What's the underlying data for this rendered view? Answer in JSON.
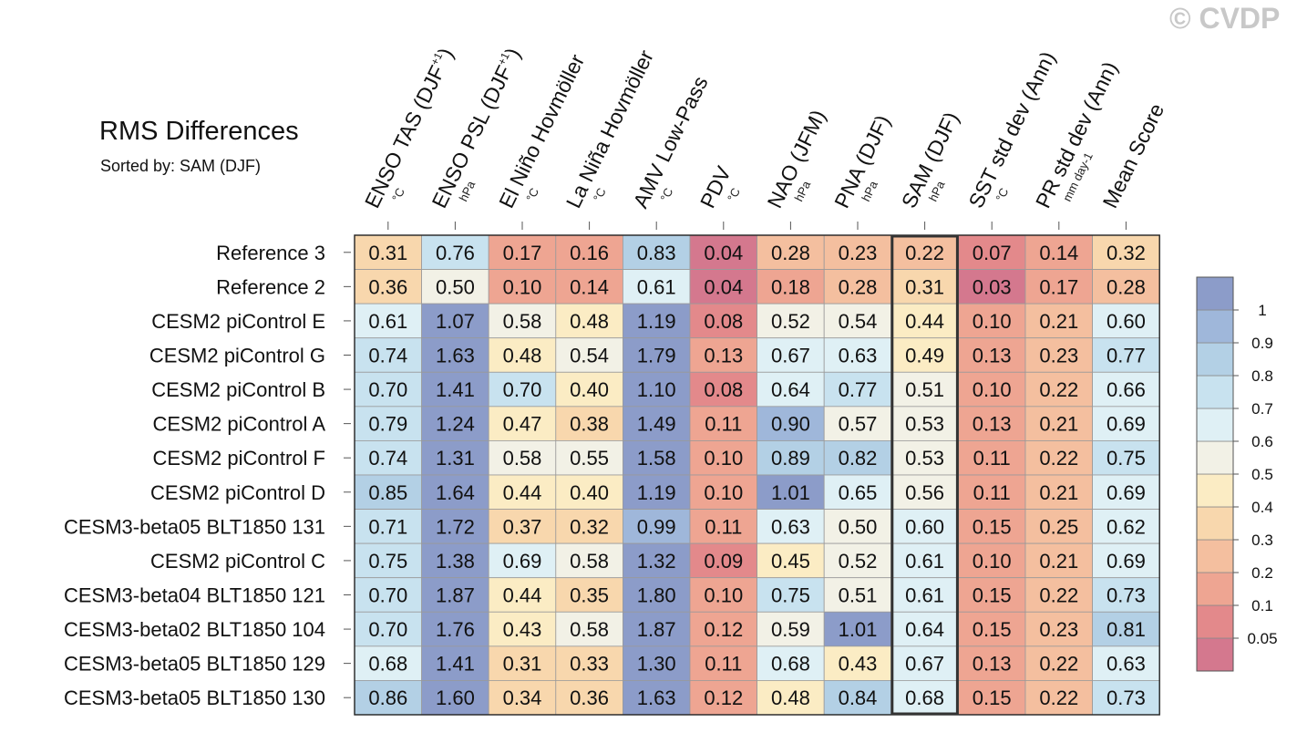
{
  "title": "RMS Differences",
  "subtitle": "Sorted by: SAM (DJF)",
  "watermark": "© CVDP",
  "chart_data": {
    "type": "heatmap",
    "title": "RMS Differences",
    "sorted_by": "SAM (DJF)",
    "highlighted_column": "SAM (DJF)",
    "columns": [
      {
        "label": "ENSO TAS (DJF",
        "sup": "+1",
        "close": ")",
        "unit": "°C"
      },
      {
        "label": "ENSO PSL (DJF",
        "sup": "+1",
        "close": ")",
        "unit": "hPa"
      },
      {
        "label": "El Niño Hovmöller",
        "sup": "",
        "close": "",
        "unit": "°C"
      },
      {
        "label": "La Niña Hovmöller",
        "sup": "",
        "close": "",
        "unit": "°C"
      },
      {
        "label": "AMV Low-Pass",
        "sup": "",
        "close": "",
        "unit": "°C"
      },
      {
        "label": "PDV",
        "sup": "",
        "close": "",
        "unit": "°C"
      },
      {
        "label": "NAO (JFM)",
        "sup": "",
        "close": "",
        "unit": "hPa"
      },
      {
        "label": "PNA (DJF)",
        "sup": "",
        "close": "",
        "unit": "hPa"
      },
      {
        "label": "SAM (DJF)",
        "sup": "",
        "close": "",
        "unit": "hPa"
      },
      {
        "label": "SST std dev (Ann)",
        "sup": "",
        "close": "",
        "unit": "°C"
      },
      {
        "label": "PR std dev (Ann)",
        "sup": "",
        "close": "",
        "unit": "mm day-1"
      },
      {
        "label": "Mean Score",
        "sup": "",
        "close": "",
        "unit": ""
      }
    ],
    "rows": [
      {
        "name": "Reference 3",
        "values": [
          "0.31",
          "0.76",
          "0.17",
          "0.16",
          "0.83",
          "0.04",
          "0.28",
          "0.23",
          "0.22",
          "0.07",
          "0.14",
          "0.32"
        ]
      },
      {
        "name": "Reference 2",
        "values": [
          "0.36",
          "0.50",
          "0.10",
          "0.14",
          "0.61",
          "0.04",
          "0.18",
          "0.28",
          "0.31",
          "0.03",
          "0.17",
          "0.28"
        ]
      },
      {
        "name": "CESM2 piControl E",
        "values": [
          "0.61",
          "1.07",
          "0.58",
          "0.48",
          "1.19",
          "0.08",
          "0.52",
          "0.54",
          "0.44",
          "0.10",
          "0.21",
          "0.60"
        ]
      },
      {
        "name": "CESM2 piControl G",
        "values": [
          "0.74",
          "1.63",
          "0.48",
          "0.54",
          "1.79",
          "0.13",
          "0.67",
          "0.63",
          "0.49",
          "0.13",
          "0.23",
          "0.77"
        ]
      },
      {
        "name": "CESM2 piControl B",
        "values": [
          "0.70",
          "1.41",
          "0.70",
          "0.40",
          "1.10",
          "0.08",
          "0.64",
          "0.77",
          "0.51",
          "0.10",
          "0.22",
          "0.66"
        ]
      },
      {
        "name": "CESM2 piControl A",
        "values": [
          "0.79",
          "1.24",
          "0.47",
          "0.38",
          "1.49",
          "0.11",
          "0.90",
          "0.57",
          "0.53",
          "0.13",
          "0.21",
          "0.69"
        ]
      },
      {
        "name": "CESM2 piControl F",
        "values": [
          "0.74",
          "1.31",
          "0.58",
          "0.55",
          "1.58",
          "0.10",
          "0.89",
          "0.82",
          "0.53",
          "0.11",
          "0.22",
          "0.75"
        ]
      },
      {
        "name": "CESM2 piControl D",
        "values": [
          "0.85",
          "1.64",
          "0.44",
          "0.40",
          "1.19",
          "0.10",
          "1.01",
          "0.65",
          "0.56",
          "0.11",
          "0.21",
          "0.69"
        ]
      },
      {
        "name": "CESM3-beta05 BLT1850 131",
        "values": [
          "0.71",
          "1.72",
          "0.37",
          "0.32",
          "0.99",
          "0.11",
          "0.63",
          "0.50",
          "0.60",
          "0.15",
          "0.25",
          "0.62"
        ]
      },
      {
        "name": "CESM2 piControl C",
        "values": [
          "0.75",
          "1.38",
          "0.69",
          "0.58",
          "1.32",
          "0.09",
          "0.45",
          "0.52",
          "0.61",
          "0.10",
          "0.21",
          "0.69"
        ]
      },
      {
        "name": "CESM3-beta04 BLT1850 121",
        "values": [
          "0.70",
          "1.87",
          "0.44",
          "0.35",
          "1.80",
          "0.10",
          "0.75",
          "0.51",
          "0.61",
          "0.15",
          "0.22",
          "0.73"
        ]
      },
      {
        "name": "CESM3-beta02 BLT1850 104",
        "values": [
          "0.70",
          "1.76",
          "0.43",
          "0.58",
          "1.87",
          "0.12",
          "0.59",
          "1.01",
          "0.64",
          "0.15",
          "0.23",
          "0.81"
        ]
      },
      {
        "name": "CESM3-beta05 BLT1850 129",
        "values": [
          "0.68",
          "1.41",
          "0.31",
          "0.33",
          "1.30",
          "0.11",
          "0.68",
          "0.43",
          "0.67",
          "0.13",
          "0.22",
          "0.63"
        ]
      },
      {
        "name": "CESM3-beta05 BLT1850 130",
        "values": [
          "0.86",
          "1.60",
          "0.34",
          "0.36",
          "1.63",
          "0.12",
          "0.48",
          "0.84",
          "0.68",
          "0.15",
          "0.22",
          "0.73"
        ]
      }
    ],
    "colorbar": {
      "levels": [
        0.05,
        0.1,
        0.2,
        0.3,
        0.4,
        0.5,
        0.6,
        0.7,
        0.8,
        0.9,
        1
      ],
      "labels": [
        "0.05",
        "0.1",
        "0.2",
        "0.3",
        "0.4",
        "0.5",
        "0.6",
        "0.7",
        "0.8",
        "0.9",
        "1"
      ],
      "colors": [
        "#d4788e",
        "#e3898b",
        "#eea592",
        "#f4bf9f",
        "#f8d7ad",
        "#fbecc4",
        "#f2f1e6",
        "#dff0f5",
        "#c8e2ef",
        "#b3d0e5",
        "#9fb7da",
        "#8c9cc9"
      ]
    }
  }
}
